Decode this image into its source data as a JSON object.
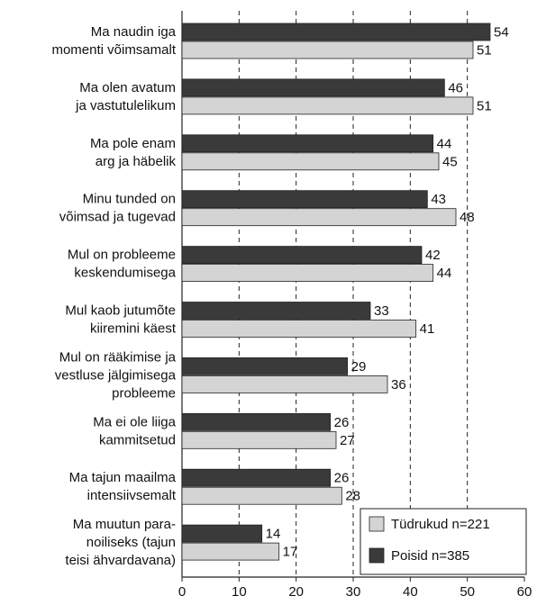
{
  "chart_data": {
    "type": "hbar",
    "categories": [
      [
        "Ma naudin iga",
        "momenti võimsamalt"
      ],
      [
        "Ma olen avatum",
        "ja vastutulelikum"
      ],
      [
        "Ma pole enam",
        "arg ja häbelik"
      ],
      [
        "Minu tunded on",
        "võimsad ja tugevad"
      ],
      [
        "Mul on probleeme",
        "keskendumisega"
      ],
      [
        "Mul kaob jutumõte",
        "kiiremini käest"
      ],
      [
        "Mul on rääkimise ja",
        "vestluse jälgimisega",
        "probleeme"
      ],
      [
        "Ma ei ole liiga",
        "kammitsetud"
      ],
      [
        "Ma tajun maailma",
        "intensiivsemalt"
      ],
      [
        "Ma muutun para-",
        "noiliseks (tajun",
        "teisi ähvardavana)"
      ]
    ],
    "series": [
      {
        "name": "Tüdrukud n=221",
        "color": "#d4d4d4",
        "values": [
          51,
          51,
          45,
          48,
          44,
          41,
          36,
          27,
          28,
          17
        ]
      },
      {
        "name": "Poisid n=385",
        "color": "#3a3a3a",
        "values": [
          54,
          46,
          44,
          43,
          42,
          33,
          29,
          26,
          26,
          14
        ]
      }
    ],
    "xlim": [
      0,
      60
    ],
    "xticks": [
      0,
      10,
      20,
      30,
      40,
      50,
      60
    ],
    "grid": true,
    "legend": "lower right"
  }
}
